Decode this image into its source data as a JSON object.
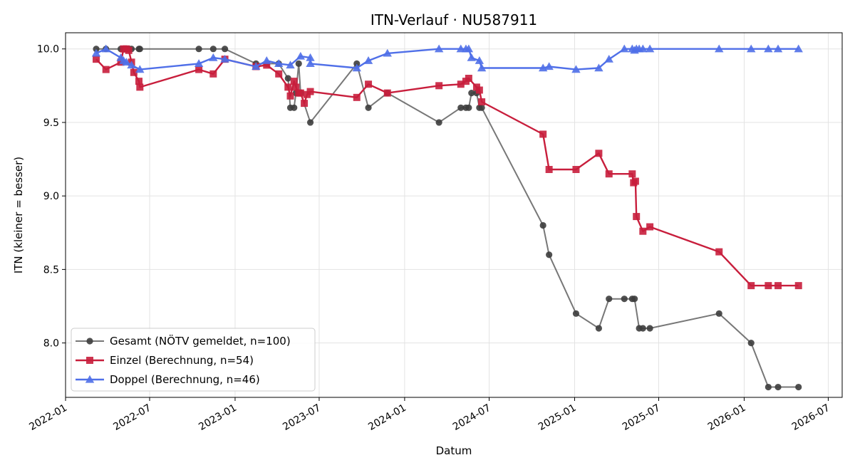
{
  "chart_data": {
    "type": "line",
    "title": "ITN-Verlauf · NU587911",
    "xlabel": "Datum",
    "ylabel": "ITN  (kleiner = besser)",
    "x_type": "date",
    "xlim": [
      "2022-01-01",
      "2026-07-31"
    ],
    "ylim": [
      7.63,
      10.11
    ],
    "x_ticks": [
      "2022-01",
      "2022-07",
      "2023-01",
      "2023-07",
      "2024-01",
      "2024-07",
      "2025-01",
      "2025-07",
      "2026-01",
      "2026-07"
    ],
    "y_ticks": [
      8.0,
      8.5,
      9.0,
      9.5,
      10.0
    ],
    "grid": true,
    "legend_position": "lower-left",
    "series": [
      {
        "name": "Gesamt (NÖTV gemeldet, n=100)",
        "color": "#3d3d3d",
        "marker": "circle",
        "points": [
          [
            "2022-03-08",
            10.0
          ],
          [
            "2022-03-29",
            10.0
          ],
          [
            "2022-04-30",
            10.0
          ],
          [
            "2022-05-06",
            10.0
          ],
          [
            "2022-05-12",
            10.0
          ],
          [
            "2022-05-17",
            10.0
          ],
          [
            "2022-05-23",
            10.0
          ],
          [
            "2022-06-08",
            10.0
          ],
          [
            "2022-06-10",
            10.0
          ],
          [
            "2022-10-15",
            10.0
          ],
          [
            "2022-11-15",
            10.0
          ],
          [
            "2022-12-10",
            10.0
          ],
          [
            "2023-02-15",
            9.9
          ],
          [
            "2023-03-10",
            9.9
          ],
          [
            "2023-04-05",
            9.9
          ],
          [
            "2023-04-25",
            9.8
          ],
          [
            "2023-04-30",
            9.6
          ],
          [
            "2023-05-08",
            9.6
          ],
          [
            "2023-05-12",
            9.7
          ],
          [
            "2023-05-18",
            9.9
          ],
          [
            "2023-05-22",
            9.7
          ],
          [
            "2023-06-12",
            9.5
          ],
          [
            "2023-09-20",
            9.9
          ],
          [
            "2023-10-15",
            9.6
          ],
          [
            "2023-11-25",
            9.7
          ],
          [
            "2024-03-15",
            9.5
          ],
          [
            "2024-05-01",
            9.6
          ],
          [
            "2024-05-12",
            9.6
          ],
          [
            "2024-05-18",
            9.6
          ],
          [
            "2024-05-24",
            9.7
          ],
          [
            "2024-06-04",
            9.7
          ],
          [
            "2024-06-10",
            9.6
          ],
          [
            "2024-06-15",
            9.6
          ],
          [
            "2024-10-25",
            8.8
          ],
          [
            "2024-11-07",
            8.6
          ],
          [
            "2025-01-04",
            8.2
          ],
          [
            "2025-02-22",
            8.1
          ],
          [
            "2025-03-16",
            8.3
          ],
          [
            "2025-04-18",
            8.3
          ],
          [
            "2025-05-05",
            8.3
          ],
          [
            "2025-05-10",
            8.3
          ],
          [
            "2025-05-20",
            8.1
          ],
          [
            "2025-05-28",
            8.1
          ],
          [
            "2025-06-12",
            8.1
          ],
          [
            "2025-11-08",
            8.2
          ],
          [
            "2026-01-16",
            8.0
          ],
          [
            "2026-02-22",
            7.7
          ],
          [
            "2026-03-15",
            7.7
          ],
          [
            "2026-04-28",
            7.7
          ]
        ]
      },
      {
        "name": "Einzel (Berechnung, n=54)",
        "color": "#c81e3c",
        "marker": "square",
        "points": [
          [
            "2022-03-08",
            9.93
          ],
          [
            "2022-03-29",
            9.86
          ],
          [
            "2022-04-30",
            9.91
          ],
          [
            "2022-05-06",
            10.0
          ],
          [
            "2022-05-12",
            10.0
          ],
          [
            "2022-05-17",
            9.99
          ],
          [
            "2022-05-23",
            9.91
          ],
          [
            "2022-05-28",
            9.84
          ],
          [
            "2022-06-08",
            9.78
          ],
          [
            "2022-06-10",
            9.74
          ],
          [
            "2022-10-15",
            9.86
          ],
          [
            "2022-11-15",
            9.83
          ],
          [
            "2022-12-10",
            9.93
          ],
          [
            "2023-02-15",
            9.88
          ],
          [
            "2023-03-10",
            9.89
          ],
          [
            "2023-04-05",
            9.83
          ],
          [
            "2023-04-25",
            9.74
          ],
          [
            "2023-04-30",
            9.68
          ],
          [
            "2023-05-08",
            9.78
          ],
          [
            "2023-05-12",
            9.74
          ],
          [
            "2023-05-18",
            9.7
          ],
          [
            "2023-05-22",
            9.7
          ],
          [
            "2023-05-30",
            9.63
          ],
          [
            "2023-06-05",
            9.69
          ],
          [
            "2023-06-12",
            9.71
          ],
          [
            "2023-09-20",
            9.67
          ],
          [
            "2023-10-15",
            9.76
          ],
          [
            "2023-11-25",
            9.7
          ],
          [
            "2024-03-15",
            9.75
          ],
          [
            "2024-05-01",
            9.76
          ],
          [
            "2024-05-12",
            9.78
          ],
          [
            "2024-05-18",
            9.8
          ],
          [
            "2024-06-04",
            9.74
          ],
          [
            "2024-06-10",
            9.72
          ],
          [
            "2024-06-15",
            9.64
          ],
          [
            "2024-10-25",
            9.42
          ],
          [
            "2024-11-07",
            9.18
          ],
          [
            "2025-01-04",
            9.18
          ],
          [
            "2025-02-22",
            9.29
          ],
          [
            "2025-03-16",
            9.15
          ],
          [
            "2025-05-05",
            9.15
          ],
          [
            "2025-05-08",
            9.09
          ],
          [
            "2025-05-12",
            9.1
          ],
          [
            "2025-05-14",
            8.86
          ],
          [
            "2025-05-28",
            8.76
          ],
          [
            "2025-06-12",
            8.79
          ],
          [
            "2025-11-08",
            8.62
          ],
          [
            "2026-01-16",
            8.39
          ],
          [
            "2026-02-22",
            8.39
          ],
          [
            "2026-03-15",
            8.39
          ],
          [
            "2026-04-28",
            8.39
          ]
        ]
      },
      {
        "name": "Doppel (Berechnung, n=46)",
        "color": "#4f6fe8",
        "marker": "triangle",
        "points": [
          [
            "2022-03-08",
            9.97
          ],
          [
            "2022-03-29",
            10.0
          ],
          [
            "2022-04-30",
            9.94
          ],
          [
            "2022-05-06",
            9.92
          ],
          [
            "2022-05-12",
            9.91
          ],
          [
            "2022-05-23",
            9.89
          ],
          [
            "2022-06-10",
            9.86
          ],
          [
            "2022-10-15",
            9.9
          ],
          [
            "2022-11-15",
            9.94
          ],
          [
            "2022-12-10",
            9.93
          ],
          [
            "2023-02-15",
            9.88
          ],
          [
            "2023-03-10",
            9.92
          ],
          [
            "2023-04-05",
            9.9
          ],
          [
            "2023-04-30",
            9.89
          ],
          [
            "2023-05-22",
            9.95
          ],
          [
            "2023-06-12",
            9.94
          ],
          [
            "2023-06-12",
            9.9
          ],
          [
            "2023-09-20",
            9.87
          ],
          [
            "2023-10-15",
            9.92
          ],
          [
            "2023-11-25",
            9.97
          ],
          [
            "2024-03-15",
            10.0
          ],
          [
            "2024-05-01",
            10.0
          ],
          [
            "2024-05-12",
            10.0
          ],
          [
            "2024-05-18",
            10.0
          ],
          [
            "2024-05-24",
            9.94
          ],
          [
            "2024-06-10",
            9.92
          ],
          [
            "2024-06-15",
            9.87
          ],
          [
            "2024-10-25",
            9.87
          ],
          [
            "2024-11-07",
            9.88
          ],
          [
            "2025-01-04",
            9.86
          ],
          [
            "2025-02-22",
            9.87
          ],
          [
            "2025-03-16",
            9.93
          ],
          [
            "2025-04-18",
            10.0
          ],
          [
            "2025-05-05",
            10.0
          ],
          [
            "2025-05-10",
            9.99
          ],
          [
            "2025-05-14",
            10.0
          ],
          [
            "2025-05-20",
            10.0
          ],
          [
            "2025-05-28",
            10.0
          ],
          [
            "2025-06-12",
            10.0
          ],
          [
            "2025-11-08",
            10.0
          ],
          [
            "2026-01-16",
            10.0
          ],
          [
            "2026-02-22",
            10.0
          ],
          [
            "2026-03-15",
            10.0
          ],
          [
            "2026-04-28",
            10.0
          ]
        ]
      }
    ]
  }
}
